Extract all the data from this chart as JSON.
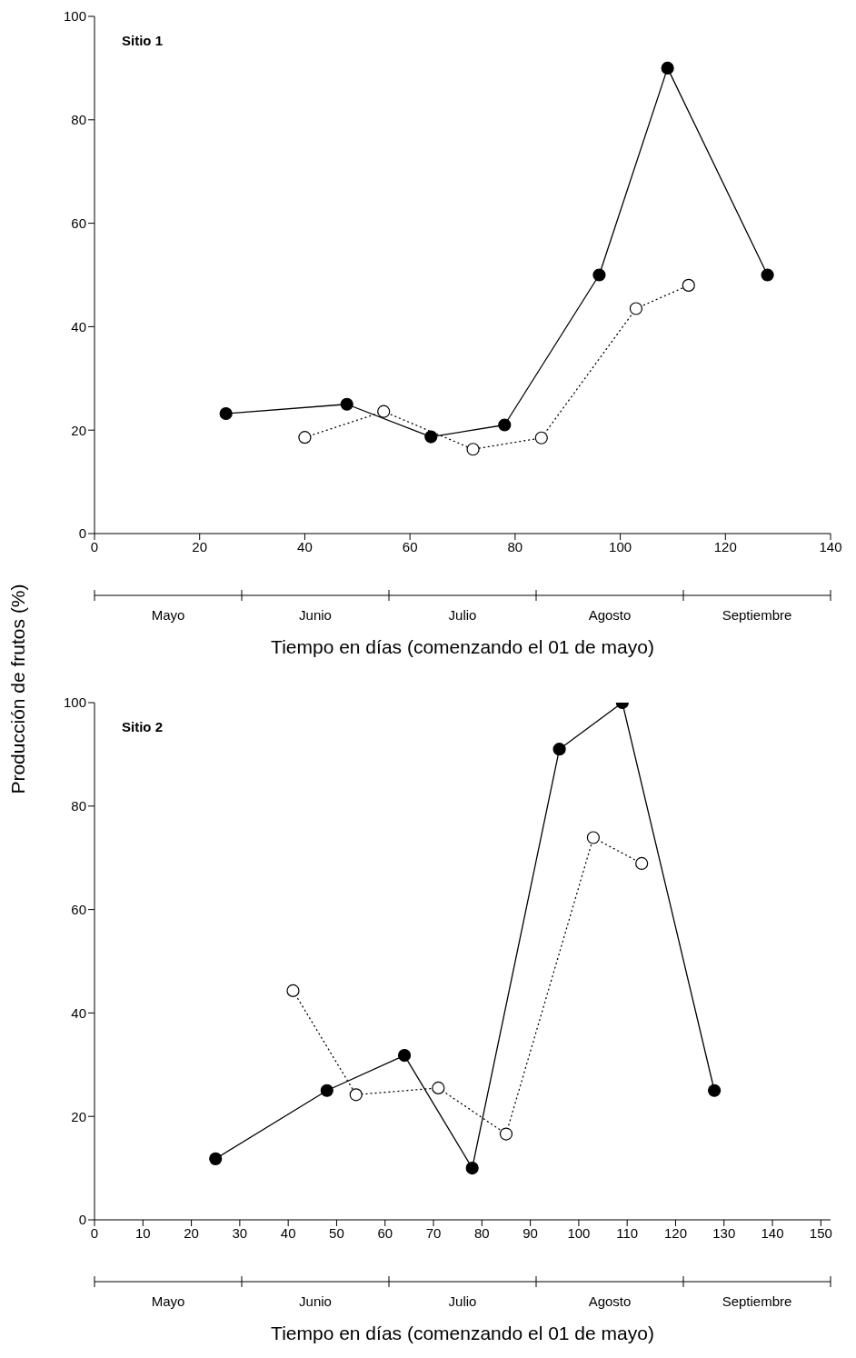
{
  "chart_data": [
    {
      "type": "line",
      "annotations": [
        "Sitio 1",
        "Mayo",
        "Junio",
        "Julio",
        "Agosto",
        "Septiembre"
      ],
      "xlabel": "Tiempo en días (comenzando el 01 de mayo)",
      "ylabel": "Producción de frutos (%)",
      "xlim": [
        0,
        140
      ],
      "xticks": [
        0,
        20,
        40,
        60,
        80,
        100,
        120,
        140
      ],
      "ylim": [
        0,
        100
      ],
      "yticks": [
        0,
        20,
        40,
        60,
        80,
        100
      ],
      "marker": "circle",
      "series": [
        {
          "color": "#000000",
          "line_style": "solid",
          "x": [
            25,
            48,
            64,
            78,
            96,
            109,
            128
          ],
          "values": [
            23.2,
            25,
            18.7,
            21,
            50,
            90,
            50
          ]
        },
        {
          "color": "#000000",
          "line_style": "dotted",
          "x": [
            40,
            55,
            72,
            85,
            103,
            113
          ],
          "values": [
            18.6,
            23.6,
            16.3,
            18.5,
            43.5,
            48
          ]
        }
      ]
    },
    {
      "type": "line",
      "annotations": [
        "Sitio 2",
        "Mayo",
        "Junio",
        "Julio",
        "Agosto",
        "Septiembre"
      ],
      "xlabel": "Tiempo en días (comenzando el 01 de mayo)",
      "xlim": [
        0,
        152
      ],
      "xticks": [
        0,
        10,
        20,
        30,
        40,
        50,
        60,
        70,
        80,
        90,
        100,
        110,
        120,
        130,
        140,
        150
      ],
      "ylim": [
        0,
        100
      ],
      "yticks": [
        0,
        20,
        40,
        60,
        80,
        100
      ],
      "marker": "circle",
      "series": [
        {
          "color": "#000000",
          "line_style": "solid",
          "x": [
            25,
            48,
            64,
            78,
            96,
            109,
            128
          ],
          "values": [
            11.8,
            25,
            31.8,
            10,
            91,
            100,
            25
          ]
        },
        {
          "color": "#000000",
          "line_style": "dotted",
          "x": [
            41,
            54,
            71,
            85,
            103,
            113
          ],
          "values": [
            44.3,
            24.2,
            25.5,
            16.6,
            73.9,
            68.9
          ]
        }
      ]
    }
  ]
}
